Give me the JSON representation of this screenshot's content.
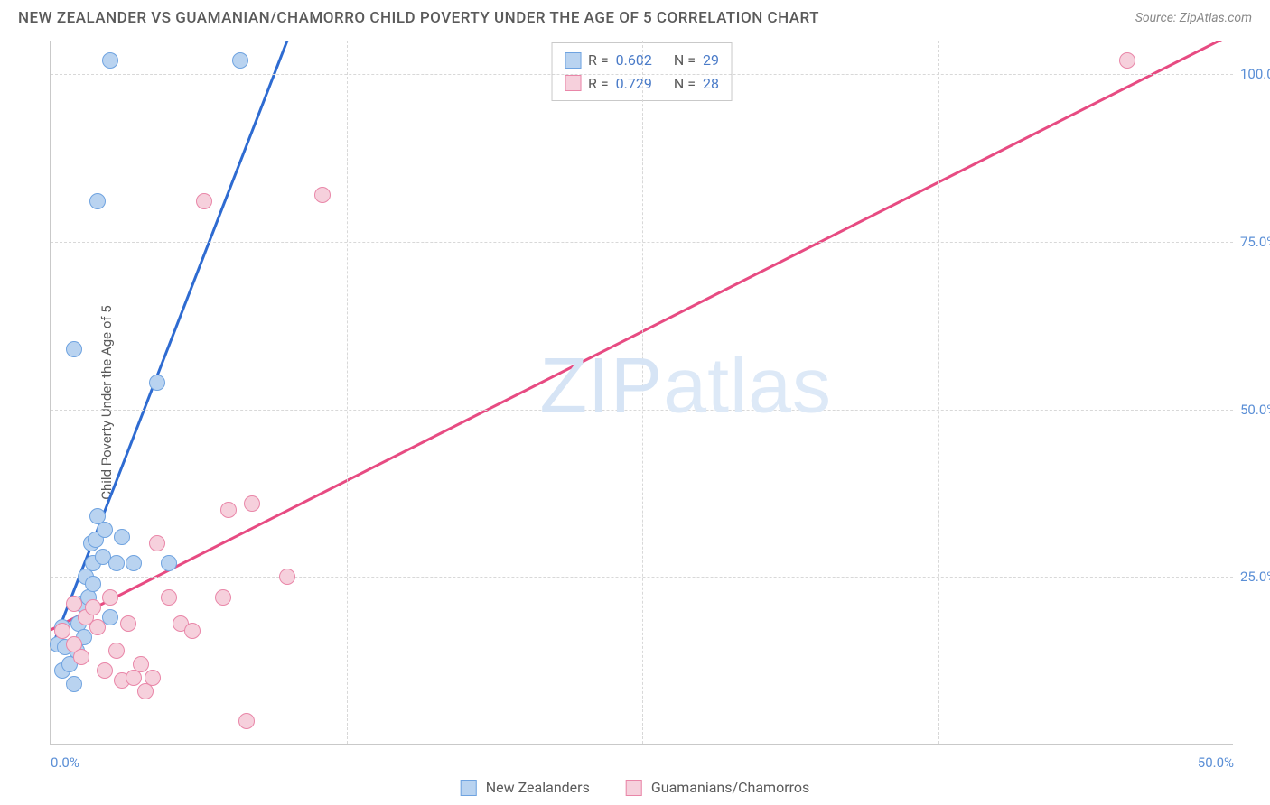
{
  "title": "NEW ZEALANDER VS GUAMANIAN/CHAMORRO CHILD POVERTY UNDER THE AGE OF 5 CORRELATION CHART",
  "source": "Source: ZipAtlas.com",
  "ylabel": "Child Poverty Under the Age of 5",
  "watermark_a": "ZIP",
  "watermark_b": "atlas",
  "chart": {
    "xmax": 50.0,
    "ymax": 105.0,
    "yticks": [
      {
        "v": 25.0,
        "label": "25.0%"
      },
      {
        "v": 50.0,
        "label": "50.0%"
      },
      {
        "v": 75.0,
        "label": "75.0%"
      },
      {
        "v": 100.0,
        "label": "100.0%"
      }
    ],
    "xticks": [
      {
        "v": 0.0,
        "label": "0.0%"
      },
      {
        "v": 50.0,
        "label": "50.0%"
      }
    ],
    "xgrid": [
      12.5,
      25.0,
      37.5
    ],
    "series": [
      {
        "name": "New Zealanders",
        "color_fill": "#b9d3f0",
        "color_stroke": "#6fa3e0",
        "line_color": "#2e6bd1",
        "r_label": "R =",
        "r": "0.602",
        "n_label": "N =",
        "n": "29",
        "line_x0": 0.0,
        "line_y0": 14.0,
        "line_x1": 10.0,
        "line_y1": 105.0,
        "line_x1b": 10.5,
        "line_y1b": 110.0,
        "points": [
          {
            "x": 0.3,
            "y": 15.0
          },
          {
            "x": 0.5,
            "y": 11.0
          },
          {
            "x": 1.0,
            "y": 9.0
          },
          {
            "x": 1.1,
            "y": 14.0
          },
          {
            "x": 1.2,
            "y": 18.0
          },
          {
            "x": 1.3,
            "y": 21.0
          },
          {
            "x": 1.5,
            "y": 25.0
          },
          {
            "x": 1.7,
            "y": 30.0
          },
          {
            "x": 1.8,
            "y": 27.0
          },
          {
            "x": 2.0,
            "y": 34.0
          },
          {
            "x": 2.2,
            "y": 28.0
          },
          {
            "x": 2.5,
            "y": 19.0
          },
          {
            "x": 2.8,
            "y": 27.0
          },
          {
            "x": 3.0,
            "y": 31.0
          },
          {
            "x": 3.5,
            "y": 27.0
          },
          {
            "x": 1.0,
            "y": 59.0
          },
          {
            "x": 2.0,
            "y": 81.0
          },
          {
            "x": 4.5,
            "y": 54.0
          },
          {
            "x": 5.0,
            "y": 27.0
          },
          {
            "x": 2.5,
            "y": 102.0
          },
          {
            "x": 8.0,
            "y": 102.0
          },
          {
            "x": 0.8,
            "y": 12.0
          },
          {
            "x": 0.5,
            "y": 17.5
          },
          {
            "x": 1.4,
            "y": 16.0
          },
          {
            "x": 1.9,
            "y": 30.5
          },
          {
            "x": 1.6,
            "y": 22.0
          },
          {
            "x": 0.6,
            "y": 14.5
          },
          {
            "x": 1.8,
            "y": 24.0
          },
          {
            "x": 2.3,
            "y": 32.0
          }
        ]
      },
      {
        "name": "Guamanians/Chamorros",
        "color_fill": "#f6d0dc",
        "color_stroke": "#e986a8",
        "line_color": "#e74b82",
        "r_label": "R =",
        "r": "0.729",
        "n_label": "N =",
        "n": "28",
        "line_x0": 0.0,
        "line_y0": 17.0,
        "line_x1": 50.0,
        "line_y1": 106.0,
        "points": [
          {
            "x": 0.5,
            "y": 17.0
          },
          {
            "x": 1.0,
            "y": 15.0
          },
          {
            "x": 1.3,
            "y": 13.0
          },
          {
            "x": 1.5,
            "y": 19.0
          },
          {
            "x": 1.8,
            "y": 20.5
          },
          {
            "x": 2.0,
            "y": 17.5
          },
          {
            "x": 2.3,
            "y": 11.0
          },
          {
            "x": 2.5,
            "y": 22.0
          },
          {
            "x": 2.8,
            "y": 14.0
          },
          {
            "x": 3.0,
            "y": 9.5
          },
          {
            "x": 3.3,
            "y": 18.0
          },
          {
            "x": 3.5,
            "y": 10.0
          },
          {
            "x": 3.8,
            "y": 12.0
          },
          {
            "x": 4.0,
            "y": 8.0
          },
          {
            "x": 4.3,
            "y": 10.0
          },
          {
            "x": 4.5,
            "y": 30.0
          },
          {
            "x": 5.0,
            "y": 22.0
          },
          {
            "x": 5.5,
            "y": 18.0
          },
          {
            "x": 6.0,
            "y": 17.0
          },
          {
            "x": 7.3,
            "y": 22.0
          },
          {
            "x": 7.5,
            "y": 35.0
          },
          {
            "x": 8.5,
            "y": 36.0
          },
          {
            "x": 8.3,
            "y": 3.5
          },
          {
            "x": 10.0,
            "y": 25.0
          },
          {
            "x": 11.5,
            "y": 82.0
          },
          {
            "x": 6.5,
            "y": 81.0
          },
          {
            "x": 45.5,
            "y": 102.0
          },
          {
            "x": 1.0,
            "y": 21.0
          }
        ]
      }
    ]
  },
  "colors": {
    "axis": "#c9c9c9",
    "grid": "#d8d8d8",
    "text": "#5a5a5a",
    "tick": "#5b8fd6",
    "value": "#4a7bc8"
  }
}
